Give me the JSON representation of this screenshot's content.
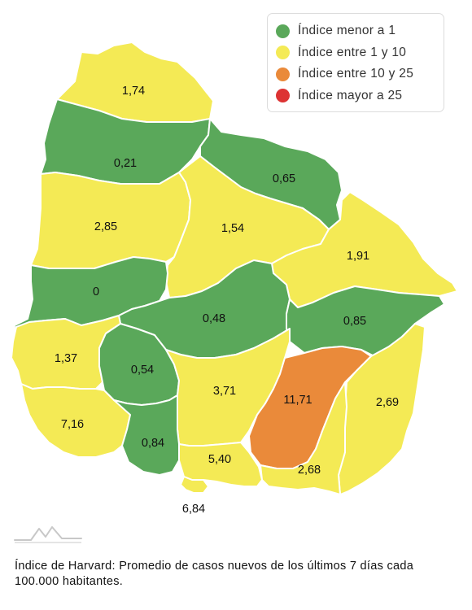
{
  "legend": {
    "items": [
      {
        "label": "Índice menor a 1",
        "color": "#5aa85a"
      },
      {
        "label": "Índice entre 1 y 10",
        "color": "#f4ea55"
      },
      {
        "label": "Índice entre 10 y 25",
        "color": "#ea8a3a"
      },
      {
        "label": "Índice mayor a 25",
        "color": "#dd3333"
      }
    ]
  },
  "map": {
    "departments": [
      {
        "value": "1,74",
        "category": 1
      },
      {
        "value": "0,21",
        "category": 0
      },
      {
        "value": "0,65",
        "category": 0
      },
      {
        "value": "2,85",
        "category": 1
      },
      {
        "value": "1,54",
        "category": 1
      },
      {
        "value": "1,91",
        "category": 1
      },
      {
        "value": "0",
        "category": 0
      },
      {
        "value": "0,48",
        "category": 0
      },
      {
        "value": "0,85",
        "category": 0
      },
      {
        "value": "1,37",
        "category": 1
      },
      {
        "value": "0,54",
        "category": 0
      },
      {
        "value": "3,71",
        "category": 1
      },
      {
        "value": "11,71",
        "category": 2
      },
      {
        "value": "2,69",
        "category": 1
      },
      {
        "value": "7,16",
        "category": 1
      },
      {
        "value": "0,84",
        "category": 0
      },
      {
        "value": "5,40",
        "category": 1
      },
      {
        "value": "2,68",
        "category": 1
      },
      {
        "value": "6,84",
        "category": 1
      }
    ]
  },
  "footnote": "Índice de Harvard: Promedio de casos nuevos de los últimos 7 días cada 100.000 habitantes."
}
